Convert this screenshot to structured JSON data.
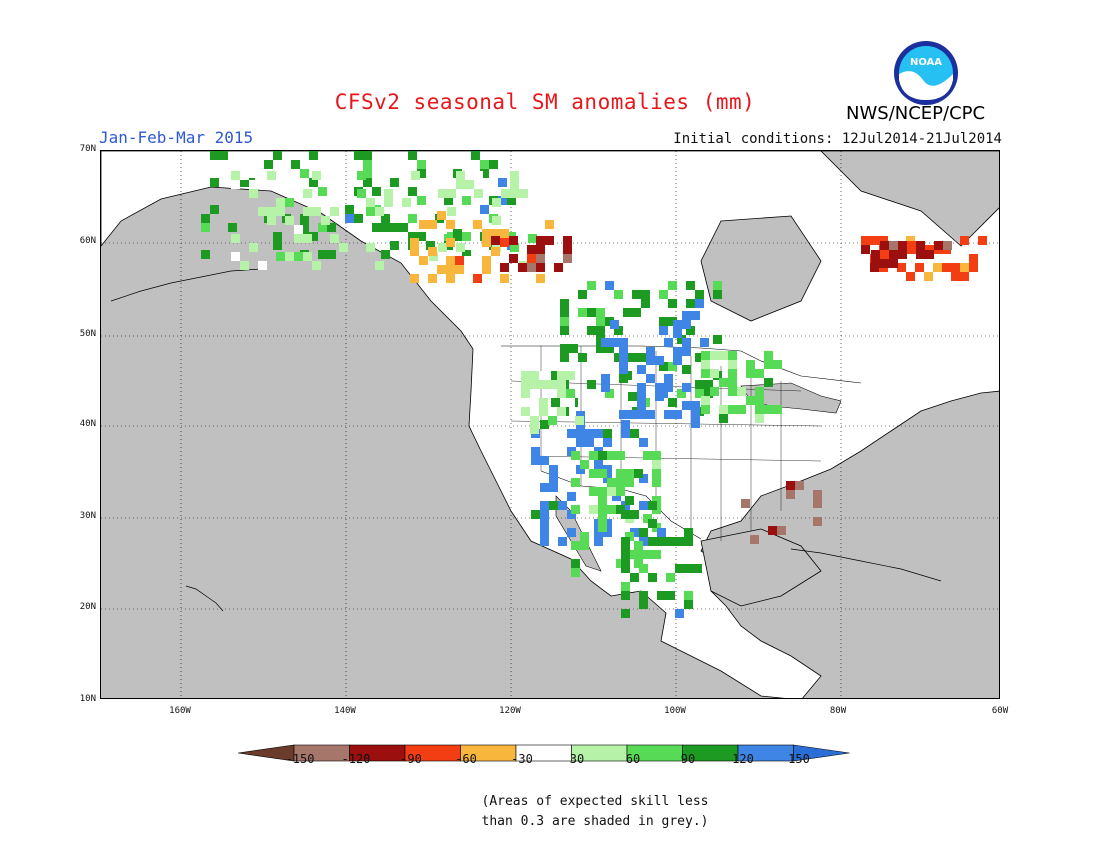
{
  "header": {
    "title": "CFSv2 seasonal SM anomalies (mm)",
    "period": "Jan-Feb-Mar 2015",
    "initial_conditions": "Initial conditions: 12Jul2014-21Jul2014",
    "agency": "NWS/NCEP/CPC",
    "logo_text": "NOAA"
  },
  "map": {
    "lat_labels": [
      "70N",
      "60N",
      "50N",
      "40N",
      "30N",
      "20N",
      "10N"
    ],
    "lon_labels": [
      "160W",
      "140W",
      "120W",
      "100W",
      "80W",
      "60W"
    ],
    "ocean_color": "#c0c0c0",
    "land_color": "#ffffff"
  },
  "legend": {
    "labels": [
      "-150",
      "-120",
      "-90",
      "-60",
      "-30",
      "30",
      "60",
      "90",
      "120",
      "150"
    ],
    "colors": [
      "#6b3b2c",
      "#a7766a",
      "#9b0f0f",
      "#f23e12",
      "#f8b73c",
      "#ffffff",
      "#b6f3a8",
      "#57db56",
      "#1c9a22",
      "#3f85e6",
      "#2b6fd6"
    ]
  },
  "note": {
    "line1": "(Areas of expected skill less",
    "line2": "than 0.3 are shaded in grey.)"
  }
}
